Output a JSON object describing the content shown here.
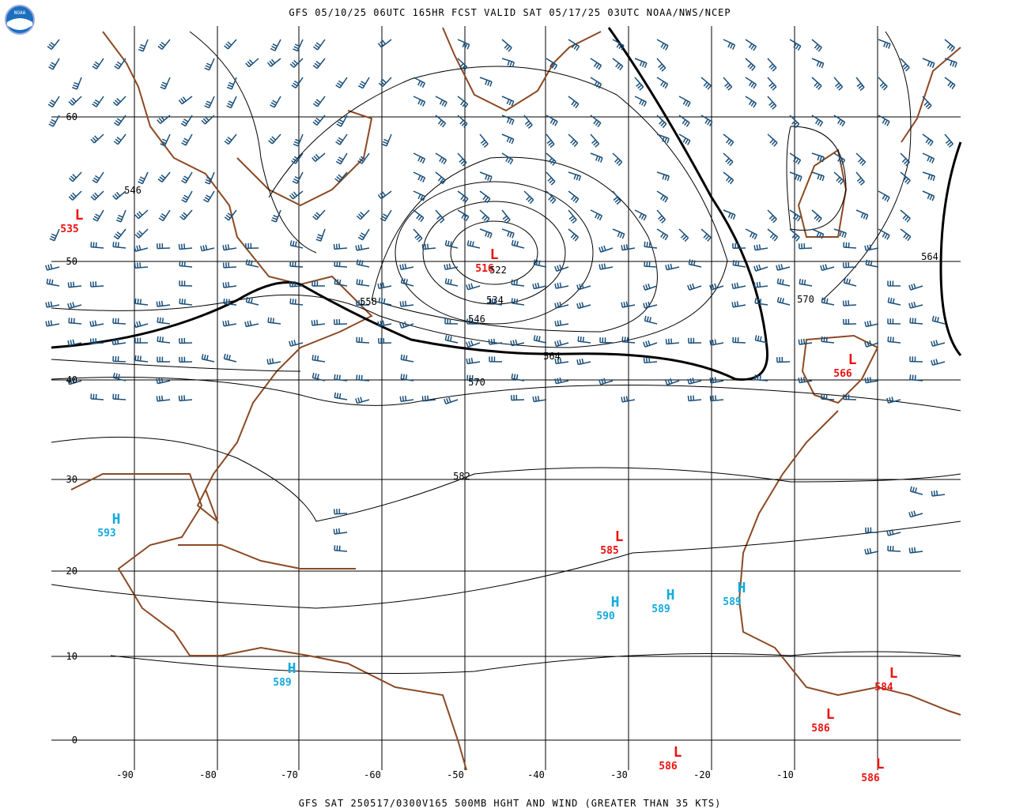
{
  "header": {
    "title": "GFS 05/10/25 06UTC 165HR FCST VALID SAT 05/17/25 03UTC NOAA/NWS/NCEP",
    "logo": "NOAA"
  },
  "footer": {
    "title": "GFS SAT 250517/0300V165 500MB HGHT AND WIND (GREATER THAN 35 KTS)"
  },
  "longitudes": [
    -90,
    -80,
    -70,
    -60,
    -50,
    -40,
    -30,
    -20,
    -10
  ],
  "latitudes": [
    60,
    50,
    40,
    30,
    20,
    10,
    0
  ],
  "centers": [
    {
      "kind": "L",
      "value": 535
    },
    {
      "kind": "L",
      "value": 516
    },
    {
      "kind": "L",
      "value": 566
    },
    {
      "kind": "L",
      "value": 585
    },
    {
      "kind": "H",
      "value": 593
    },
    {
      "kind": "H",
      "value": 590
    },
    {
      "kind": "H",
      "value": 589
    },
    {
      "kind": "H",
      "value": 589
    },
    {
      "kind": "H",
      "value": 589
    },
    {
      "kind": "L",
      "value": 584
    },
    {
      "kind": "L",
      "value": 586
    },
    {
      "kind": "L",
      "value": 586
    },
    {
      "kind": "L",
      "value": 586
    }
  ],
  "contour_labels": [
    546,
    558,
    534,
    546,
    564,
    570,
    582,
    570,
    564,
    522
  ]
}
